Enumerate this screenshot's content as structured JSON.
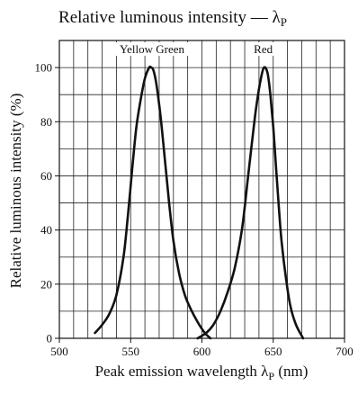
{
  "chart_data": {
    "type": "line",
    "title": "Relative luminous intensity — λ",
    "title_subscript": "P",
    "xlabel": "Peak emission wavelength λ",
    "xlabel_subscript": "P",
    "xlabel_unit": "(nm)",
    "ylabel": "Relative luminous intensity  (%)",
    "xlim": [
      500,
      700
    ],
    "ylim": [
      0,
      110
    ],
    "x_ticks": [
      500,
      550,
      600,
      650,
      700
    ],
    "x_tick_labels": [
      "500",
      "550",
      "600",
      "650",
      "700"
    ],
    "y_ticks": [
      0,
      20,
      40,
      60,
      80,
      100
    ],
    "y_tick_labels": [
      "0",
      "20",
      "40",
      "60",
      "80",
      "100"
    ],
    "x_minor_step": 10,
    "y_minor_step": 10,
    "grid": true,
    "legend": "none",
    "series": [
      {
        "name": "Yellow Green",
        "x": [
          525,
          530,
          535,
          540,
          545,
          548,
          551,
          554,
          557,
          560,
          563,
          564.5,
          566,
          568,
          571,
          574,
          577,
          580,
          584,
          588,
          592,
          597,
          602,
          606
        ],
        "y": [
          2,
          5,
          9,
          16,
          30,
          45,
          62,
          78,
          88,
          96,
          100,
          100,
          99,
          94,
          82,
          66,
          50,
          36,
          24,
          16,
          11,
          6,
          2,
          0
        ]
      },
      {
        "name": "Red",
        "x": [
          597,
          603,
          608,
          613,
          618,
          623,
          628,
          632,
          635,
          638,
          641,
          643.5,
          646,
          648,
          650,
          652,
          654,
          656,
          659,
          662,
          666,
          671
        ],
        "y": [
          0,
          2,
          5,
          10,
          17,
          26,
          40,
          58,
          72,
          85,
          95,
          100,
          98,
          90,
          78,
          63,
          48,
          35,
          22,
          12,
          5,
          0
        ]
      }
    ],
    "series_label_x": [
      565,
      643
    ],
    "series_label_y": 105
  }
}
